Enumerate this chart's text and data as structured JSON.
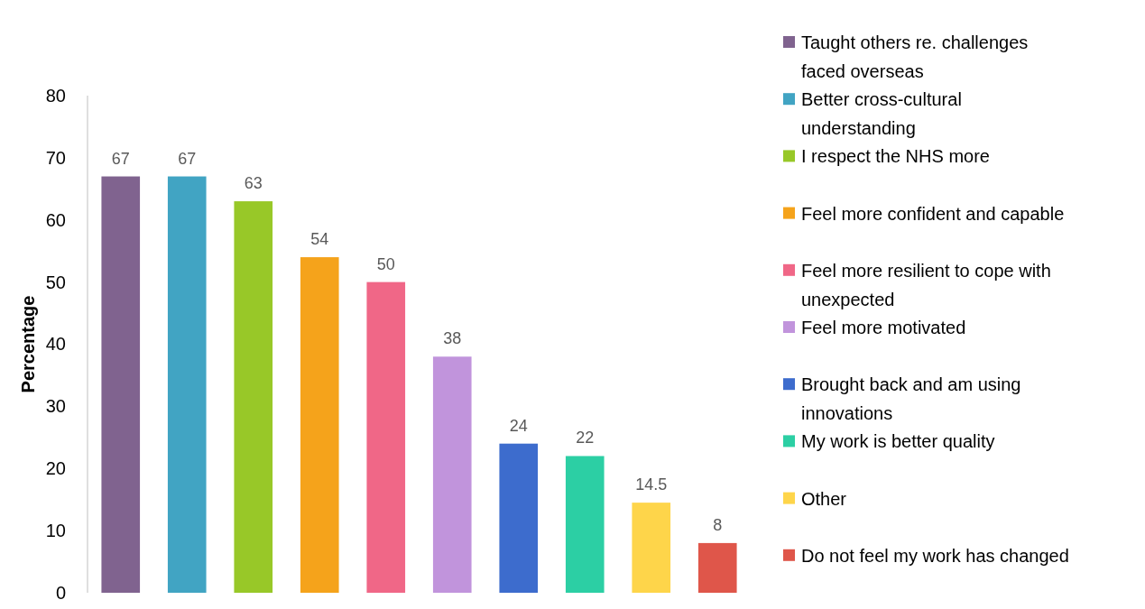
{
  "chart_data": {
    "type": "bar",
    "ylabel": "Percentage",
    "ylim": [
      0,
      80
    ],
    "yticks": [
      0,
      10,
      20,
      30,
      40,
      50,
      60,
      70,
      80
    ],
    "grid": false,
    "legend": "right",
    "data_labels": true,
    "tick_labels": "y",
    "stacked": true,
    "categories": [
      null,
      null,
      null,
      null,
      null,
      null,
      null,
      null,
      null,
      null
    ],
    "series": [
      {
        "name": "Taught others re. challenges faced overseas",
        "color": "#80638f",
        "values": [
          67,
          null,
          null,
          null,
          null,
          null,
          null,
          null,
          null,
          null
        ]
      },
      {
        "name": "Better cross-cultural understanding",
        "color": "#41a4c3",
        "values": [
          null,
          67,
          null,
          null,
          null,
          null,
          null,
          null,
          null,
          null
        ]
      },
      {
        "name": "I respect the NHS more",
        "color": "#98c828",
        "values": [
          null,
          null,
          63,
          null,
          null,
          null,
          null,
          null,
          null,
          null
        ]
      },
      {
        "name": "Feel more confident and capable",
        "color": "#f5a31b",
        "values": [
          null,
          null,
          null,
          54,
          null,
          null,
          null,
          null,
          null,
          null
        ]
      },
      {
        "name": "Feel more resilient to cope with unexpected",
        "color": "#f06787",
        "values": [
          null,
          null,
          null,
          null,
          50,
          null,
          null,
          null,
          null,
          null
        ]
      },
      {
        "name": "Feel more motivated",
        "color": "#c194dc",
        "values": [
          null,
          null,
          null,
          null,
          null,
          38,
          null,
          null,
          null,
          null
        ]
      },
      {
        "name": "Brought back and am using innovations",
        "color": "#3d6ccd",
        "values": [
          null,
          null,
          null,
          null,
          null,
          null,
          24,
          null,
          null,
          null
        ]
      },
      {
        "name": "My work is better quality",
        "color": "#2ccfa4",
        "values": [
          null,
          null,
          null,
          null,
          null,
          null,
          null,
          22,
          null,
          null
        ]
      },
      {
        "name": "Other",
        "color": "#fed54a",
        "values": [
          null,
          null,
          null,
          null,
          null,
          null,
          null,
          null,
          14.5,
          null
        ]
      },
      {
        "name": "Do not feel my work has changed",
        "color": "#df564a",
        "values": [
          null,
          null,
          null,
          null,
          null,
          null,
          null,
          null,
          null,
          8
        ]
      }
    ]
  }
}
